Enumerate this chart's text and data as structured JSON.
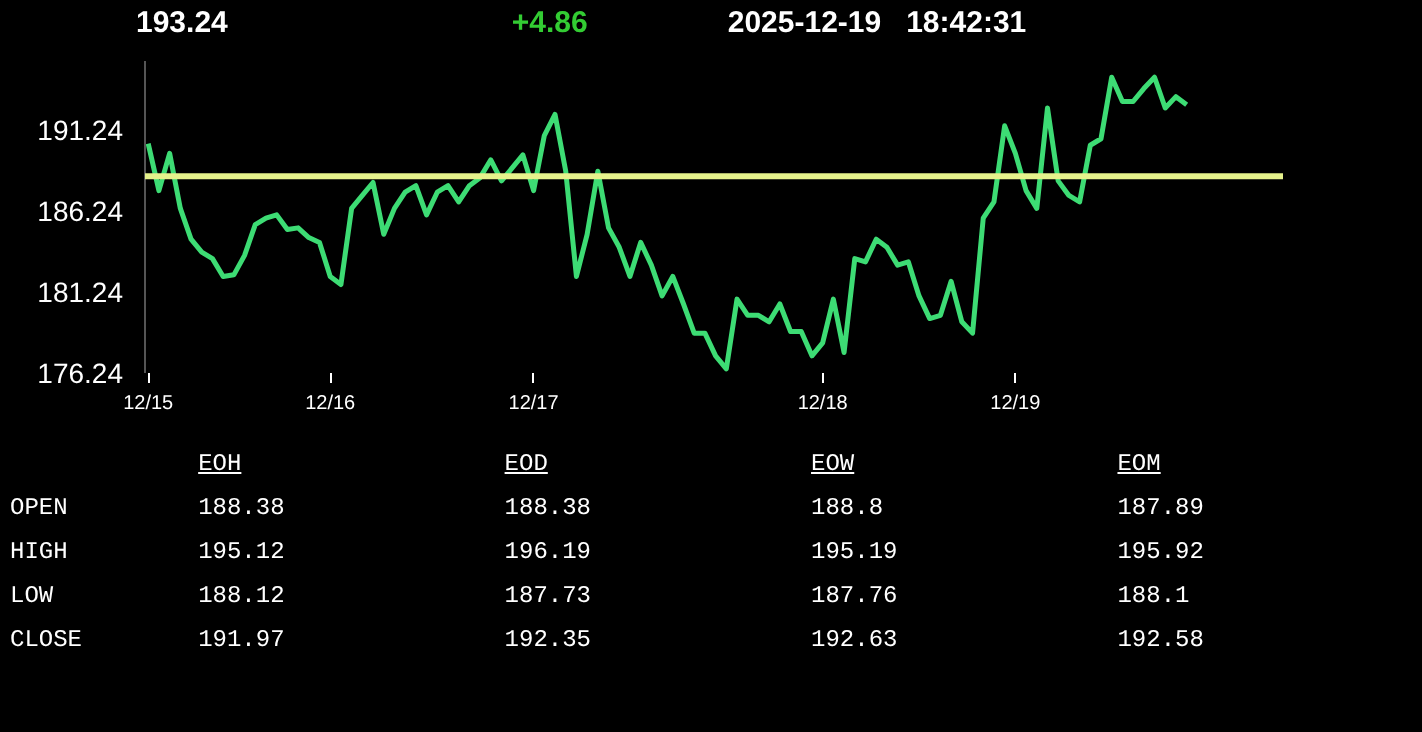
{
  "chart_data": [
    {
      "type": "line",
      "title": "193.24",
      "subtitle": "+4.86",
      "annotations": [
        "2025-12-19   18:42:31"
      ],
      "categories": [
        "12/15",
        null,
        null,
        null,
        null,
        null,
        null,
        null,
        null,
        null,
        null,
        null,
        null,
        null,
        null,
        null,
        null,
        "12/16",
        null,
        null,
        null,
        null,
        null,
        null,
        null,
        null,
        null,
        null,
        null,
        null,
        null,
        null,
        null,
        null,
        null,
        null,
        "12/17",
        null,
        null,
        null,
        null,
        null,
        null,
        null,
        null,
        null,
        null,
        null,
        null,
        null,
        null,
        null,
        null,
        null,
        null,
        null,
        null,
        null,
        null,
        null,
        null,
        null,
        null,
        "12/18",
        null,
        null,
        null,
        null,
        null,
        null,
        null,
        null,
        null,
        null,
        null,
        null,
        null,
        null,
        null,
        null,
        null,
        "12/19",
        null,
        null,
        null,
        null,
        null,
        null,
        null,
        null,
        null,
        null,
        null,
        null,
        null,
        null,
        null,
        null
      ],
      "series": [
        {
          "color": "#3ddc74",
          "values": [
            190.4,
            187.5,
            189.8,
            186.4,
            184.5,
            183.7,
            183.3,
            182.2,
            182.3,
            183.5,
            185.4,
            185.8,
            186.0,
            185.1,
            185.2,
            184.6,
            184.3,
            182.2,
            181.7,
            186.4,
            187.2,
            188.0,
            184.8,
            186.4,
            187.4,
            187.8,
            186.0,
            187.4,
            187.8,
            186.8,
            187.8,
            188.3,
            189.4,
            188.1,
            188.9,
            189.7,
            187.5,
            190.9,
            192.2,
            188.7,
            182.2,
            184.8,
            188.7,
            185.2,
            184.0,
            182.2,
            184.3,
            182.9,
            181.0,
            182.2,
            180.5,
            178.7,
            178.7,
            177.3,
            176.5,
            180.8,
            179.8,
            179.8,
            179.4,
            180.5,
            178.8,
            178.8,
            177.3,
            178.1,
            180.8,
            177.5,
            183.3,
            183.1,
            184.5,
            184.0,
            182.9,
            183.1,
            181.0,
            179.6,
            179.8,
            181.9,
            179.4,
            178.7,
            185.8,
            186.8,
            191.5,
            189.8,
            187.5,
            186.4,
            192.6,
            188.1,
            187.2,
            186.8,
            190.3,
            190.7,
            194.5,
            193.0,
            193.0,
            193.8,
            194.5,
            192.6,
            193.3,
            192.8
          ]
        }
      ],
      "ref_lines": [
        {
          "axis": "y",
          "value": 188.38,
          "color": "#e6f28c"
        }
      ],
      "ylim": [
        176.24,
        195.5
      ],
      "yticks": [
        176.24,
        181.24,
        186.24,
        191.24
      ],
      "grid": false,
      "marker": "none",
      "line_style": "solid"
    },
    {
      "type": "other",
      "categories": [
        "EOH",
        "EOD",
        "EOW",
        "EOM"
      ],
      "y_categories": [
        "OPEN",
        "HIGH",
        "LOW",
        "CLOSE"
      ],
      "cell_labels": [
        [
          "188.38",
          "188.38",
          "188.8",
          "187.89"
        ],
        [
          "195.12",
          "196.19",
          "195.19",
          "195.92"
        ],
        [
          "188.12",
          "187.73",
          "187.76",
          "188.1"
        ],
        [
          "191.97",
          "192.35",
          "192.63",
          "192.58"
        ]
      ]
    }
  ]
}
